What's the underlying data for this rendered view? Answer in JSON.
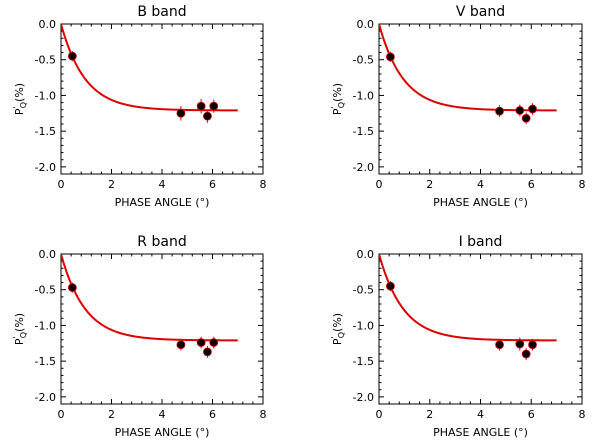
{
  "chart_data": [
    {
      "type": "scatter",
      "title": "B band",
      "xlabel": "PHASE ANGLE",
      "xlabel_unit": "(°)",
      "ylabel_main": "P",
      "ylabel_sub": "Q",
      "ylabel_prime": "'",
      "ylabel_unit": "(%)",
      "xlim": [
        0,
        8
      ],
      "ylim": [
        -2.1,
        0
      ],
      "xticks": [
        "0",
        "2",
        "4",
        "6",
        "8"
      ],
      "yticks": [
        "0.0",
        "-0.5",
        "-1.0",
        "-1.5",
        "-2.0"
      ],
      "points": [
        {
          "x": 0.45,
          "y": -0.45,
          "err": 0.03
        },
        {
          "x": 4.75,
          "y": -1.25,
          "err": 0.06
        },
        {
          "x": 5.55,
          "y": -1.15,
          "err": 0.06
        },
        {
          "x": 5.8,
          "y": -1.29,
          "err": 0.05
        },
        {
          "x": 6.05,
          "y": -1.15,
          "err": 0.05
        }
      ],
      "fit_curve": {
        "color": "#dd0000",
        "x_range": [
          0,
          7
        ]
      }
    },
    {
      "type": "scatter",
      "title": "V band",
      "xlabel": "PHASE ANGLE",
      "xlabel_unit": "(°)",
      "ylabel_main": "P",
      "ylabel_sub": "Q",
      "ylabel_prime": "'",
      "ylabel_unit": "(%)",
      "xlim": [
        0,
        8
      ],
      "ylim": [
        -2.1,
        0
      ],
      "xticks": [
        "0",
        "2",
        "4",
        "6",
        "8"
      ],
      "yticks": [
        "0.0",
        "-0.5",
        "-1.0",
        "-1.5",
        "-2.0"
      ],
      "points": [
        {
          "x": 0.45,
          "y": -0.46,
          "err": 0.03
        },
        {
          "x": 4.75,
          "y": -1.22,
          "err": 0.04
        },
        {
          "x": 5.55,
          "y": -1.21,
          "err": 0.04
        },
        {
          "x": 5.8,
          "y": -1.32,
          "err": 0.04
        },
        {
          "x": 6.05,
          "y": -1.19,
          "err": 0.04
        }
      ],
      "fit_curve": {
        "color": "#dd0000",
        "x_range": [
          0,
          7
        ]
      }
    },
    {
      "type": "scatter",
      "title": "R band",
      "xlabel": "PHASE ANGLE",
      "xlabel_unit": "(°)",
      "ylabel_main": "P",
      "ylabel_sub": "Q",
      "ylabel_prime": "'",
      "ylabel_unit": "(%)",
      "xlim": [
        0,
        8
      ],
      "ylim": [
        -2.1,
        0
      ],
      "xticks": [
        "0",
        "2",
        "4",
        "6",
        "8"
      ],
      "yticks": [
        "0.0",
        "-0.5",
        "-1.0",
        "-1.5",
        "-2.0"
      ],
      "points": [
        {
          "x": 0.45,
          "y": -0.47,
          "err": 0.03
        },
        {
          "x": 4.75,
          "y": -1.27,
          "err": 0.04
        },
        {
          "x": 5.55,
          "y": -1.24,
          "err": 0.04
        },
        {
          "x": 5.8,
          "y": -1.37,
          "err": 0.04
        },
        {
          "x": 6.05,
          "y": -1.24,
          "err": 0.04
        }
      ],
      "fit_curve": {
        "color": "#dd0000",
        "x_range": [
          0,
          7
        ]
      }
    },
    {
      "type": "scatter",
      "title": "I band",
      "xlabel": "PHASE ANGLE",
      "xlabel_unit": "(°)",
      "ylabel_main": "P",
      "ylabel_sub": "Q",
      "ylabel_prime": "'",
      "ylabel_unit": "(%)",
      "xlim": [
        0,
        8
      ],
      "ylim": [
        -2.1,
        0
      ],
      "xticks": [
        "0",
        "2",
        "4",
        "6",
        "8"
      ],
      "yticks": [
        "0.0",
        "-0.5",
        "-1.0",
        "-1.5",
        "-2.0"
      ],
      "points": [
        {
          "x": 0.45,
          "y": -0.45,
          "err": 0.03
        },
        {
          "x": 4.75,
          "y": -1.27,
          "err": 0.04
        },
        {
          "x": 5.55,
          "y": -1.26,
          "err": 0.05
        },
        {
          "x": 5.8,
          "y": -1.4,
          "err": 0.04
        },
        {
          "x": 6.05,
          "y": -1.27,
          "err": 0.04
        }
      ],
      "fit_curve": {
        "color": "#dd0000",
        "x_range": [
          0,
          7
        ]
      }
    }
  ]
}
